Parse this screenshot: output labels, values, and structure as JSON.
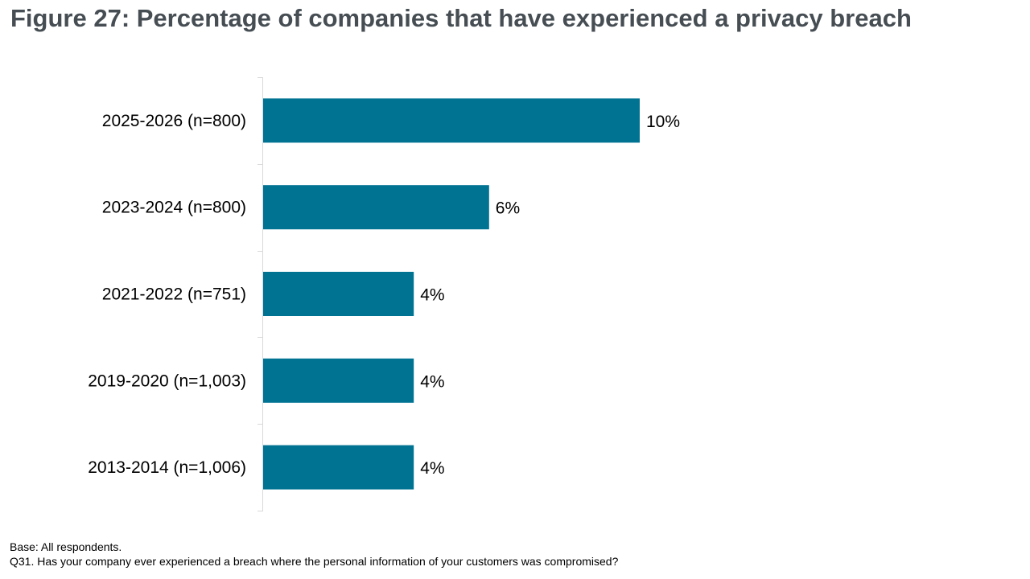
{
  "chart_data": {
    "type": "bar",
    "orientation": "horizontal",
    "title": "Figure 27: Percentage of companies that have experienced a privacy breach",
    "categories": [
      "2025-2026 (n=800)",
      "2023-2024 (n=800)",
      "2021-2022 (n=751)",
      "2019-2020 (n=1,003)",
      "2013-2014 (n=1,006)"
    ],
    "values": [
      10,
      6,
      4,
      4,
      4
    ],
    "data_labels": [
      "10%",
      "6%",
      "4%",
      "4%",
      "4%"
    ],
    "xlim": [
      0,
      20
    ],
    "bar_color": "#007392",
    "axis_color": "#d9d9d9",
    "grid": false,
    "legend": "none"
  },
  "footnotes": {
    "base": "Base: All respondents.",
    "question": "Q31. Has your company ever experienced a breach where the personal information of your customers was compromised?"
  }
}
